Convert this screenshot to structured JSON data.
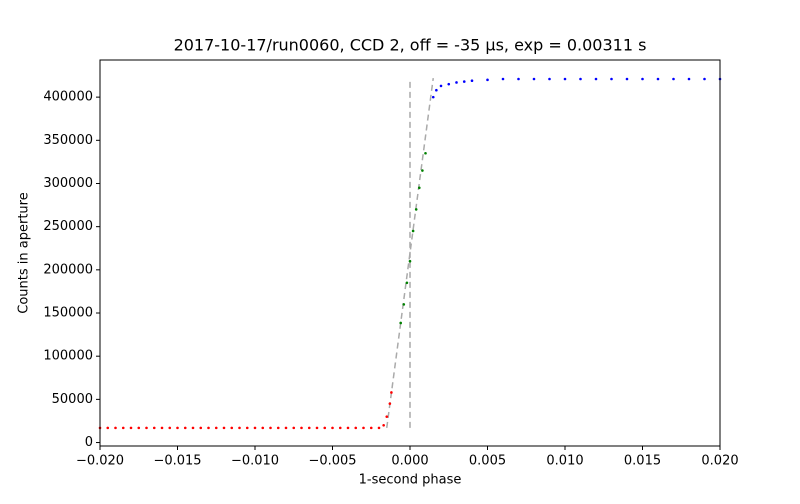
{
  "chart_data": {
    "type": "scatter",
    "title": "2017-10-17/run0060, CCD 2, off = -35 μs, exp = 0.00311 s",
    "xlabel": "1-second phase",
    "ylabel": "Counts in aperture",
    "xlim": [
      -0.02,
      0.02
    ],
    "ylim": [
      -4000,
      443000
    ],
    "xticks": [
      {
        "value": -0.02,
        "label": "−0.020"
      },
      {
        "value": -0.015,
        "label": "−0.015"
      },
      {
        "value": -0.01,
        "label": "−0.010"
      },
      {
        "value": -0.005,
        "label": "−0.005"
      },
      {
        "value": 0,
        "label": "0.000"
      },
      {
        "value": 0.005,
        "label": "0.005"
      },
      {
        "value": 0.01,
        "label": "0.010"
      },
      {
        "value": 0.015,
        "label": "0.015"
      },
      {
        "value": 0.02,
        "label": "0.020"
      }
    ],
    "yticks": [
      0,
      50000,
      100000,
      150000,
      200000,
      250000,
      300000,
      350000,
      400000
    ],
    "series": [
      {
        "color": "#aaaaaa",
        "style": "dashed",
        "x": [
          0,
          0
        ],
        "values": [
          17000,
          422000
        ]
      },
      {
        "color": "#aaaaaa",
        "style": "dashed",
        "x": [
          -0.0015,
          0.0015
        ],
        "values": [
          17000,
          422000
        ]
      },
      {
        "color": "#ff0000",
        "style": "dots",
        "x": [
          -0.02,
          -0.0195,
          -0.019,
          -0.0185,
          -0.018,
          -0.0175,
          -0.017,
          -0.0165,
          -0.016,
          -0.0155,
          -0.015,
          -0.0145,
          -0.014,
          -0.0135,
          -0.013,
          -0.0125,
          -0.012,
          -0.0115,
          -0.011,
          -0.0105,
          -0.01,
          -0.0095,
          -0.009,
          -0.0085,
          -0.008,
          -0.0075,
          -0.007,
          -0.0065,
          -0.006,
          -0.0055,
          -0.005,
          -0.0045,
          -0.004,
          -0.0035,
          -0.003,
          -0.0025,
          -0.002,
          -0.0017,
          -0.0015,
          -0.0013,
          -0.0012
        ],
        "values": [
          17000,
          17000,
          17000,
          17000,
          17000,
          17000,
          17000,
          17000,
          17000,
          17000,
          17000,
          17000,
          17000,
          17000,
          17000,
          17000,
          17000,
          17000,
          17000,
          17000,
          17000,
          17000,
          17000,
          17000,
          17000,
          17000,
          17000,
          17000,
          17000,
          17000,
          17000,
          17000,
          17000,
          17000,
          17000,
          17000,
          17000,
          20000,
          30000,
          45000,
          58000
        ]
      },
      {
        "color": "#008000",
        "style": "dots",
        "x": [
          -0.0006,
          -0.0004,
          -0.0002,
          0,
          0.0002,
          0.0004,
          0.0006,
          0.0008,
          0.001
        ],
        "values": [
          138500,
          160000,
          185000,
          210000,
          245000,
          270000,
          295000,
          315000,
          335000
        ]
      },
      {
        "color": "#0000ff",
        "style": "dots",
        "x": [
          0.0015,
          0.0017,
          0.002,
          0.0025,
          0.003,
          0.0035,
          0.004,
          0.005,
          0.006,
          0.007,
          0.008,
          0.009,
          0.01,
          0.011,
          0.012,
          0.013,
          0.014,
          0.015,
          0.016,
          0.017,
          0.018,
          0.019,
          0.02
        ],
        "values": [
          400000,
          408000,
          413000,
          415000,
          417000,
          418000,
          419000,
          420000,
          421000,
          421000,
          421000,
          421000,
          421000,
          421000,
          421000,
          421000,
          421000,
          421000,
          421000,
          421000,
          421000,
          421000,
          421000
        ]
      }
    ]
  }
}
